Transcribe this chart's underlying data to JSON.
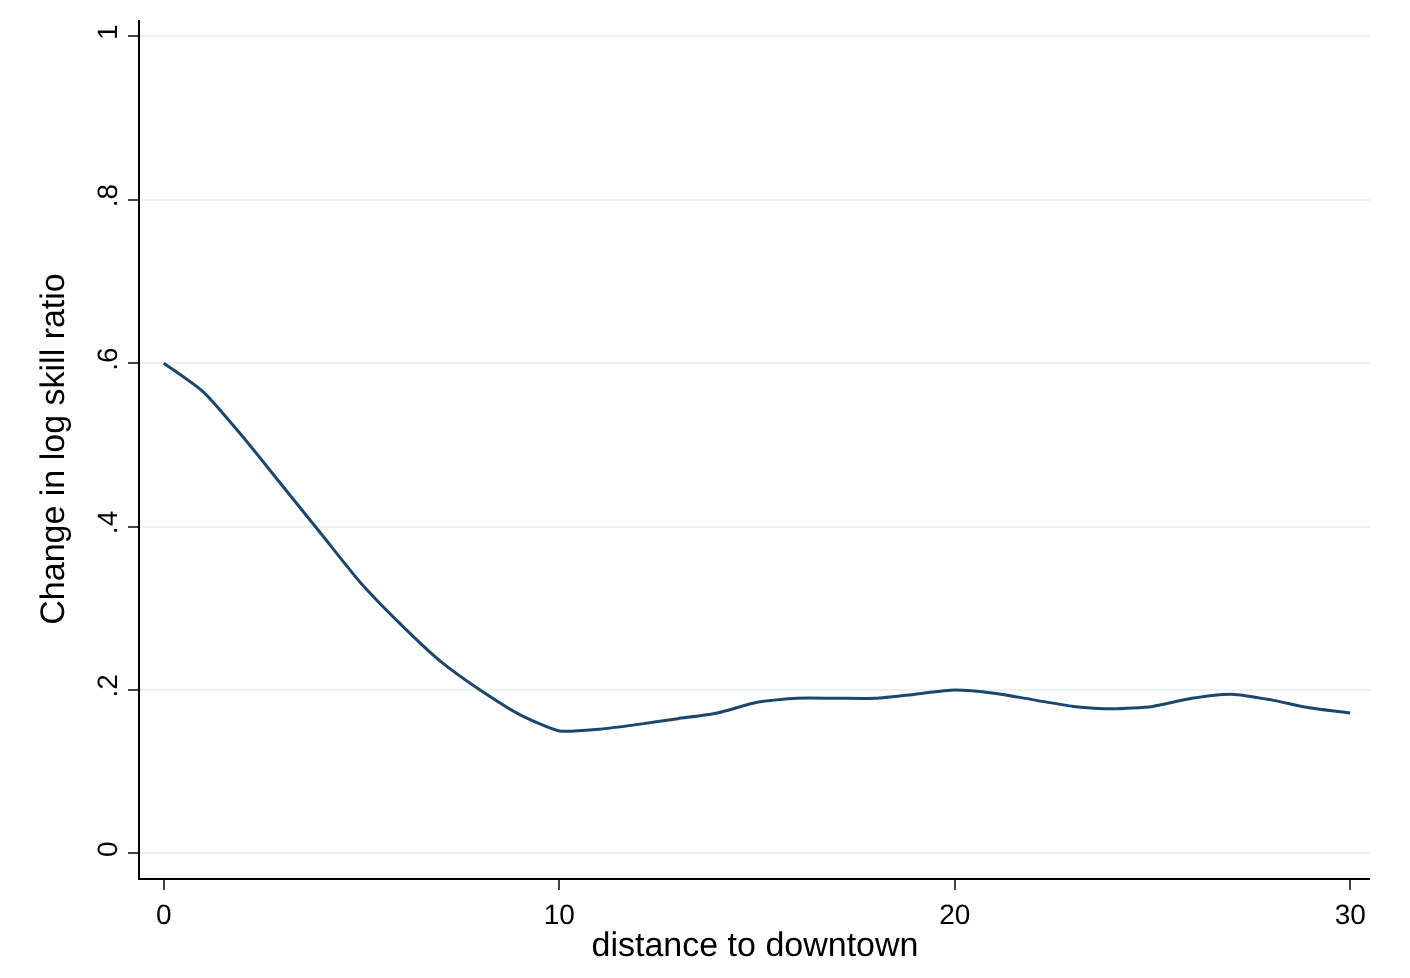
{
  "chart_data": {
    "type": "line",
    "xlabel": "distance to downtown",
    "ylabel": "Change in log skill ratio",
    "x": [
      0,
      1,
      2,
      3,
      4,
      5,
      6,
      7,
      8,
      9,
      10,
      11,
      12,
      13,
      14,
      15,
      16,
      17,
      18,
      19,
      20,
      21,
      22,
      23,
      24,
      25,
      26,
      27,
      28,
      29,
      30
    ],
    "series": [
      {
        "color": "#1a476f",
        "values": [
          0.6,
          0.565,
          0.51,
          0.45,
          0.39,
          0.33,
          0.28,
          0.235,
          0.2,
          0.17,
          0.15,
          0.152,
          0.158,
          0.165,
          0.172,
          0.185,
          0.19,
          0.19,
          0.19,
          0.195,
          0.2,
          0.196,
          0.188,
          0.18,
          0.177,
          0.18,
          0.19,
          0.195,
          0.188,
          0.178,
          0.172
        ]
      }
    ],
    "xlim": [
      -0.6,
      30.5
    ],
    "xticks": [
      0,
      10,
      20,
      30
    ],
    "ylim": [
      -0.03,
      1.02
    ],
    "yticks": [
      0,
      {
        "value": 0.2,
        "label": ".2"
      },
      {
        "value": 0.4,
        "label": ".4"
      },
      {
        "value": 0.6,
        "label": ".6"
      },
      {
        "value": 0.8,
        "label": ".8"
      },
      1
    ],
    "grid": "y",
    "line_style": "solid",
    "marker": "none"
  }
}
